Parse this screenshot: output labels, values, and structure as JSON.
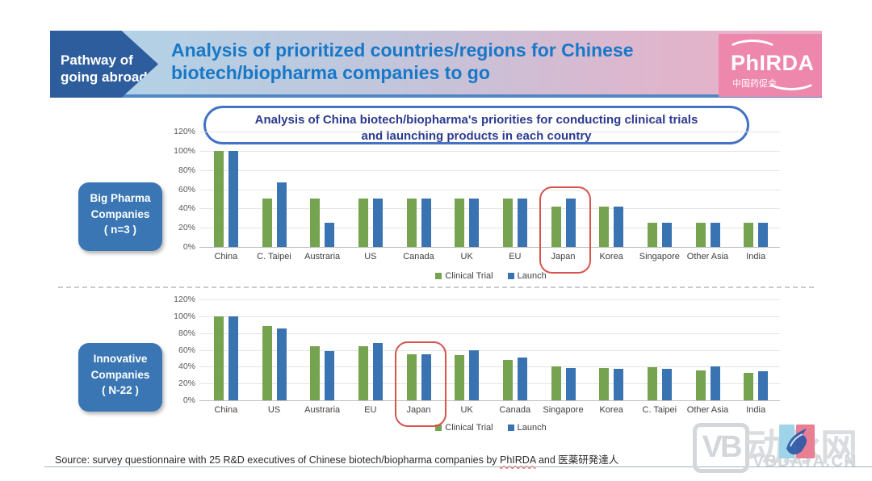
{
  "header": {
    "tag": {
      "line1": "Pathway of",
      "line2": "going abroad"
    },
    "title": {
      "line1": "Analysis of prioritized countries/regions for Chinese",
      "line2": "biotech/biopharma companies to go"
    },
    "logo": {
      "name": "PhIRDA",
      "subtext": "中国药促会"
    }
  },
  "chart_title": {
    "line1": "Analysis of China biotech/biopharma's priorities for conducting clinical trials",
    "line2": "and launching products in each country"
  },
  "chart_data": [
    {
      "type": "bar",
      "group_label_lines": [
        "Big Pharma",
        "Companies",
        "( n=3 )"
      ],
      "categories": [
        "China",
        "C. Taipei",
        "Austraria",
        "US",
        "Canada",
        "UK",
        "EU",
        "Japan",
        "Korea",
        "Singapore",
        "Other Asia",
        "India"
      ],
      "series": [
        {
          "name": "Clinical Trial",
          "color": "#76A34F",
          "values": [
            100,
            50,
            50,
            50,
            50,
            50,
            50,
            42,
            42,
            25,
            25,
            25
          ]
        },
        {
          "name": "Launch",
          "color": "#3973B1",
          "values": [
            100,
            67,
            25,
            50,
            50,
            50,
            50,
            50,
            42,
            25,
            25,
            25
          ]
        }
      ],
      "ymax": 120,
      "yticks": [
        120,
        100,
        80,
        60,
        40,
        20,
        0
      ],
      "ytick_format": "percent",
      "grid": true,
      "legend_position": "bottom",
      "highlighted_category": "Japan"
    },
    {
      "type": "bar",
      "group_label_lines": [
        "Innovative",
        "Companies",
        "( N-22 )"
      ],
      "categories": [
        "China",
        "US",
        "Austraria",
        "EU",
        "Japan",
        "UK",
        "Canada",
        "Singapore",
        "Korea",
        "C. Taipei",
        "Other Asia",
        "India"
      ],
      "series": [
        {
          "name": "Clinical Trial",
          "color": "#76A34F",
          "values": [
            100,
            88,
            64,
            64,
            55,
            54,
            48,
            40,
            38,
            39,
            36,
            33
          ]
        },
        {
          "name": "Launch",
          "color": "#3973B1",
          "values": [
            100,
            85,
            59,
            68,
            55,
            60,
            51,
            38,
            37,
            37,
            40,
            35
          ]
        }
      ],
      "ymax": 120,
      "yticks": [
        120,
        100,
        80,
        60,
        40,
        20,
        0
      ],
      "ytick_format": "percent",
      "grid": true,
      "legend_position": "bottom",
      "highlighted_category": "Japan"
    }
  ],
  "source": {
    "prefix": "Source: survey questionnaire with 25 R&D executives of Chinese biotech/biopharma companies by ",
    "org1": "PhIRDA",
    "connector": " and ",
    "org2": "医薬研発達人"
  },
  "watermark": {
    "vb": "VB",
    "name": "动脉网",
    "site": "VBDATA.CN"
  },
  "colors": {
    "clinical_trial": "#76A34F",
    "launch": "#3973B1",
    "highlight_ring": "#D9534F",
    "title_blue": "#1778C8"
  }
}
